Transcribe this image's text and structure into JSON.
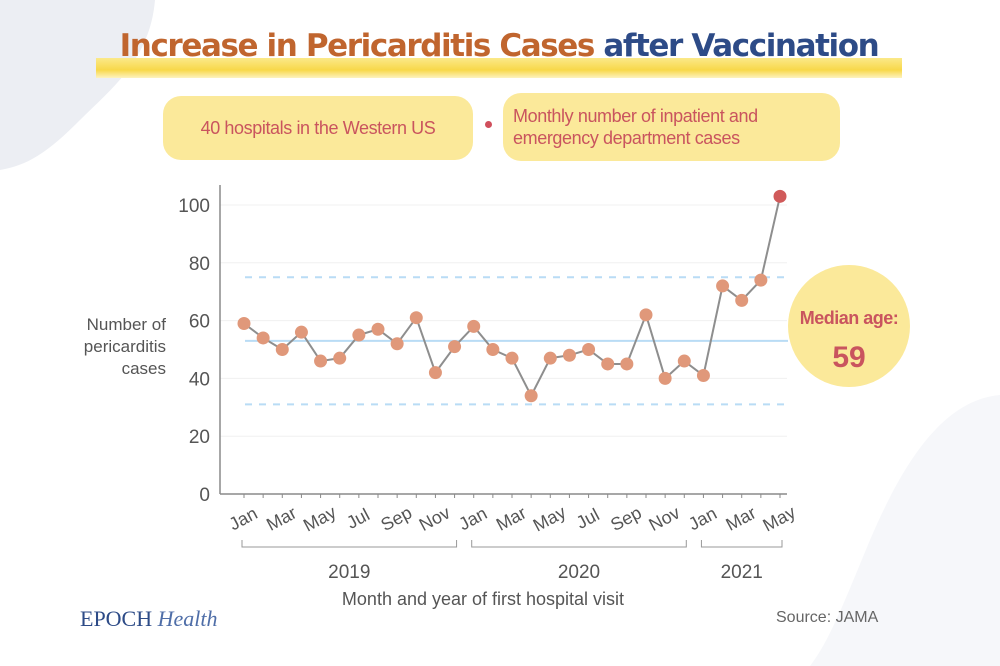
{
  "title": {
    "part1": "Increase in Pericarditis Cases",
    "part2": "after Vaccination"
  },
  "info_pills": [
    {
      "text": "40 hospitals in the Western US"
    },
    {
      "text_line1": "Monthly number of inpatient and",
      "text_line2": "emergency department cases"
    }
  ],
  "median_age": {
    "label": "Median age:",
    "value": "59"
  },
  "brand": {
    "part1": "EPOCH",
    "part2": "Health"
  },
  "source": "Source: JAMA",
  "colors": {
    "point": "#e0987a",
    "last_point": "#d05a5a",
    "line": "#8e8e8e",
    "median_line": "#b9dcf5",
    "band_line": "#b9dcf5",
    "title_orange": "#c0652e",
    "title_blue": "#2d4b87",
    "pill_bg": "#fbe99a",
    "pill_text": "#c9545e"
  },
  "chart_data": {
    "type": "line",
    "title": "Increase in Pericarditis Cases after Vaccination",
    "xlabel": "Month and year of first hospital visit",
    "ylabel_lines": [
      "Number of",
      "pericarditis",
      "cases"
    ],
    "ylabel": "Number of pericarditis cases",
    "ylim": [
      0,
      100
    ],
    "yticks": [
      0,
      20,
      40,
      60,
      80,
      100
    ],
    "grid": true,
    "x": [
      "Jan 2019",
      "Feb 2019",
      "Mar 2019",
      "Apr 2019",
      "May 2019",
      "Jun 2019",
      "Jul 2019",
      "Aug 2019",
      "Sep 2019",
      "Oct 2019",
      "Nov 2019",
      "Dec 2019",
      "Jan 2020",
      "Feb 2020",
      "Mar 2020",
      "Apr 2020",
      "May 2020",
      "Jun 2020",
      "Jul 2020",
      "Aug 2020",
      "Sep 2020",
      "Oct 2020",
      "Nov 2020",
      "Dec 2020",
      "Jan 2021",
      "Feb 2021",
      "Mar 2021",
      "Apr 2021",
      "May 2021"
    ],
    "xtick_labels": [
      "Jan",
      "Mar",
      "May",
      "Jul",
      "Sep",
      "Nov",
      "Jan",
      "Mar",
      "May",
      "Jul",
      "Sep",
      "Nov",
      "Jan",
      "Mar",
      "May"
    ],
    "xtick_indices": [
      0,
      2,
      4,
      6,
      8,
      10,
      12,
      14,
      16,
      18,
      20,
      22,
      24,
      26,
      28
    ],
    "year_groups": [
      {
        "label": "2019",
        "start": 0,
        "end": 11
      },
      {
        "label": "2020",
        "start": 12,
        "end": 23
      },
      {
        "label": "2021",
        "start": 24,
        "end": 28
      }
    ],
    "series": [
      {
        "name": "Monthly pericarditis cases",
        "values": [
          59,
          54,
          50,
          56,
          46,
          47,
          55,
          57,
          52,
          61,
          42,
          51,
          58,
          50,
          47,
          34,
          47,
          48,
          50,
          45,
          45,
          62,
          40,
          46,
          41,
          72,
          67,
          74,
          103
        ]
      }
    ],
    "reference_lines": [
      {
        "name": "median",
        "value": 53,
        "style": "solid"
      },
      {
        "name": "upper-limit",
        "value": 75,
        "style": "dashed"
      },
      {
        "name": "lower-limit",
        "value": 31,
        "style": "dashed"
      }
    ],
    "highlighted_point_index": 28
  }
}
